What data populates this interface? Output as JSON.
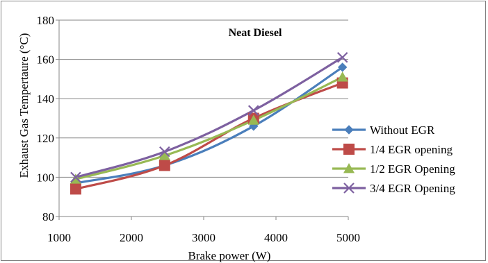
{
  "chart_data": {
    "type": "line",
    "title": "Neat Diesel",
    "xlabel": "Brake power (W)",
    "ylabel": "Exhaust Gas Tempertaure  (°C)",
    "xlim": [
      1000,
      5000
    ],
    "ylim": [
      80,
      180
    ],
    "xticks": [
      1000,
      2000,
      3000,
      4000,
      5000
    ],
    "yticks": [
      80,
      100,
      120,
      140,
      160,
      180
    ],
    "grid": "horizontal",
    "legend_position": "right",
    "series": [
      {
        "name": "Without EGR",
        "color": "#4a7ebb",
        "marker": "diamond",
        "x": [
          1230,
          2460,
          3690,
          4920
        ],
        "y": [
          97,
          106,
          126,
          156
        ]
      },
      {
        "name": "1/4 EGR opening",
        "color": "#be4b48",
        "marker": "square",
        "x": [
          1230,
          2460,
          3690,
          4920
        ],
        "y": [
          94,
          106,
          130,
          148
        ]
      },
      {
        "name": "1/2 EGR Opening",
        "color": "#98b954",
        "marker": "triangle",
        "x": [
          1230,
          2460,
          3690,
          4920
        ],
        "y": [
          99,
          111,
          129,
          151
        ]
      },
      {
        "name": "3/4 EGR Opening",
        "color": "#7d60a0",
        "marker": "x",
        "x": [
          1230,
          2460,
          3690,
          4920
        ],
        "y": [
          100,
          113,
          134,
          161
        ]
      }
    ]
  }
}
